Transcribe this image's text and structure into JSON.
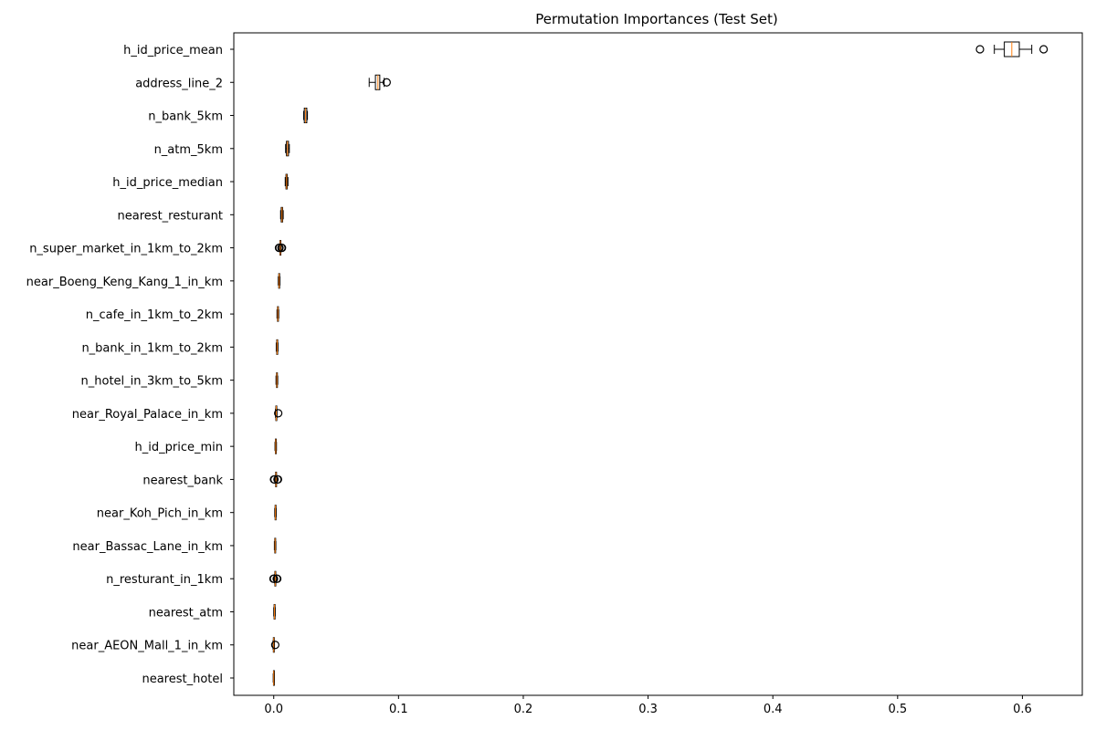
{
  "chart_data": {
    "type": "box",
    "orientation": "horizontal",
    "title": "Permutation Importances (Test Set)",
    "xlabel": "",
    "ylabel": "",
    "xlim": [
      -0.032,
      0.648
    ],
    "xticks": [
      0.0,
      0.1,
      0.2,
      0.3,
      0.4,
      0.5,
      0.6
    ],
    "xtick_labels": [
      "0.0",
      "0.1",
      "0.2",
      "0.3",
      "0.4",
      "0.5",
      "0.6"
    ],
    "grid": false,
    "box_color": "#000000",
    "median_color": "#ff7f0e",
    "features": [
      {
        "name": "h_id_price_mean",
        "whisker_low": 0.5775,
        "q1": 0.5855,
        "median": 0.5915,
        "q3": 0.5975,
        "whisker_high": 0.6075,
        "outliers": [
          0.566,
          0.617
        ]
      },
      {
        "name": "address_line_2",
        "whisker_low": 0.0765,
        "q1": 0.0815,
        "median": 0.0835,
        "q3": 0.085,
        "whisker_high": 0.0885,
        "outliers": [
          0.0905
        ]
      },
      {
        "name": "n_bank_5km",
        "whisker_low": 0.024,
        "q1": 0.0245,
        "median": 0.0255,
        "q3": 0.0265,
        "whisker_high": 0.027,
        "outliers": []
      },
      {
        "name": "n_atm_5km",
        "whisker_low": 0.0095,
        "q1": 0.0102,
        "median": 0.011,
        "q3": 0.0118,
        "whisker_high": 0.0125,
        "outliers": []
      },
      {
        "name": "h_id_price_median",
        "whisker_low": 0.0092,
        "q1": 0.0098,
        "median": 0.0103,
        "q3": 0.0108,
        "whisker_high": 0.0114,
        "outliers": []
      },
      {
        "name": "nearest_resturant",
        "whisker_low": 0.0055,
        "q1": 0.006,
        "median": 0.0066,
        "q3": 0.0071,
        "whisker_high": 0.0076,
        "outliers": []
      },
      {
        "name": "n_super_market_in_1km_to_2km",
        "whisker_low": 0.0047,
        "q1": 0.005,
        "median": 0.0053,
        "q3": 0.0056,
        "whisker_high": 0.0059,
        "outliers": [
          0.0042,
          0.0046,
          0.0062,
          0.0066
        ]
      },
      {
        "name": "near_Boeng_Keng_Kang_1_in_km",
        "whisker_low": 0.0036,
        "q1": 0.004,
        "median": 0.0043,
        "q3": 0.0046,
        "whisker_high": 0.005,
        "outliers": []
      },
      {
        "name": "n_cafe_in_1km_to_2km",
        "whisker_low": 0.0026,
        "q1": 0.003,
        "median": 0.0033,
        "q3": 0.0036,
        "whisker_high": 0.004,
        "outliers": []
      },
      {
        "name": "n_bank_in_1km_to_2km",
        "whisker_low": 0.002,
        "q1": 0.0024,
        "median": 0.0027,
        "q3": 0.003,
        "whisker_high": 0.0034,
        "outliers": []
      },
      {
        "name": "n_hotel_in_3km_to_5km",
        "whisker_low": 0.0018,
        "q1": 0.0022,
        "median": 0.0025,
        "q3": 0.0028,
        "whisker_high": 0.0032,
        "outliers": []
      },
      {
        "name": "near_Royal_Palace_in_km",
        "whisker_low": 0.0014,
        "q1": 0.0017,
        "median": 0.002,
        "q3": 0.0023,
        "whisker_high": 0.0026,
        "outliers": [
          0.0036
        ]
      },
      {
        "name": "h_id_price_min",
        "whisker_low": 0.001,
        "q1": 0.0013,
        "median": 0.0016,
        "q3": 0.0019,
        "whisker_high": 0.0022,
        "outliers": []
      },
      {
        "name": "nearest_bank",
        "whisker_low": 0.0012,
        "q1": 0.0015,
        "median": 0.0018,
        "q3": 0.0021,
        "whisker_high": 0.0024,
        "outliers": [
          0.0002,
          0.0006,
          0.003,
          0.0034
        ]
      },
      {
        "name": "near_Koh_Pich_in_km",
        "whisker_low": 0.0008,
        "q1": 0.0011,
        "median": 0.0014,
        "q3": 0.0017,
        "whisker_high": 0.002,
        "outliers": []
      },
      {
        "name": "near_Bassac_Lane_in_km",
        "whisker_low": 0.0005,
        "q1": 0.0008,
        "median": 0.0011,
        "q3": 0.0014,
        "whisker_high": 0.0017,
        "outliers": []
      },
      {
        "name": "n_resturant_in_1km",
        "whisker_low": 0.0006,
        "q1": 0.0009,
        "median": 0.0012,
        "q3": 0.0015,
        "whisker_high": 0.0018,
        "outliers": [
          -0.0002,
          0.0002,
          0.0024,
          0.0028
        ]
      },
      {
        "name": "nearest_atm",
        "whisker_low": 0.0,
        "q1": 0.0003,
        "median": 0.0006,
        "q3": 0.0009,
        "whisker_high": 0.0012,
        "outliers": []
      },
      {
        "name": "near_AEON_Mall_1_in_km",
        "whisker_low": -0.0006,
        "q1": -0.0003,
        "median": 0.0,
        "q3": 0.0003,
        "whisker_high": 0.0006,
        "outliers": [
          0.0012
        ]
      },
      {
        "name": "nearest_hotel",
        "whisker_low": -0.0004,
        "q1": -0.0002,
        "median": 0.0,
        "q3": 0.0002,
        "whisker_high": 0.0004,
        "outliers": []
      }
    ]
  }
}
